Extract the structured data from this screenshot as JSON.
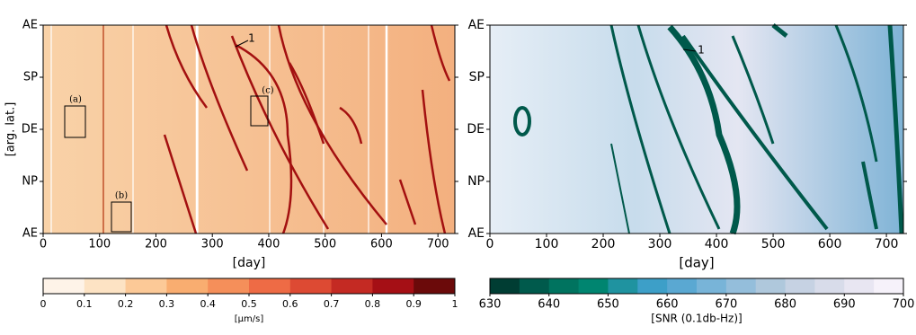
{
  "panels": [
    {
      "x_label": "[day]",
      "y_label": "[arg. lat.]",
      "xlim": [
        0,
        730
      ],
      "xticks": [
        0,
        100,
        200,
        300,
        400,
        500,
        600,
        700
      ],
      "y_tick_labels": [
        "AE",
        "SP",
        "DE",
        "NP",
        "AE"
      ],
      "annotations": [
        "1",
        "(a)",
        "(b)",
        "(c)"
      ],
      "colorbar": {
        "label": "[μm/s]",
        "lim": [
          0,
          1
        ],
        "ticks": [
          0,
          0.1,
          0.2,
          0.3,
          0.4,
          0.5,
          0.6,
          0.7,
          0.8,
          0.9,
          1
        ],
        "colors": [
          "#fef3e8",
          "#fde3c4",
          "#fcc997",
          "#f9ad70",
          "#f58f5a",
          "#ee6b45",
          "#dd4a33",
          "#c42a23",
          "#a50f15",
          "#6b0a0a"
        ]
      }
    },
    {
      "x_label": "[day]",
      "xlim": [
        0,
        730
      ],
      "xticks": [
        0,
        100,
        200,
        300,
        400,
        500,
        600,
        700
      ],
      "y_tick_labels": [
        "AE",
        "SP",
        "DE",
        "NP",
        "AE"
      ],
      "annotations": [
        "1"
      ],
      "colorbar": {
        "label": "[SNR (0.1db-Hz)]",
        "lim": [
          630,
          700
        ],
        "ticks": [
          630,
          640,
          650,
          660,
          670,
          680,
          690,
          700
        ],
        "colors": [
          "#003d33",
          "#005a4c",
          "#00735f",
          "#008570",
          "#1f93a0",
          "#3d9fc8",
          "#5aa8d2",
          "#78b4d8",
          "#94bedb",
          "#afc8dc",
          "#c6d2e3",
          "#d8dcea",
          "#e8e6f2",
          "#f6f2fa"
        ]
      }
    }
  ]
}
